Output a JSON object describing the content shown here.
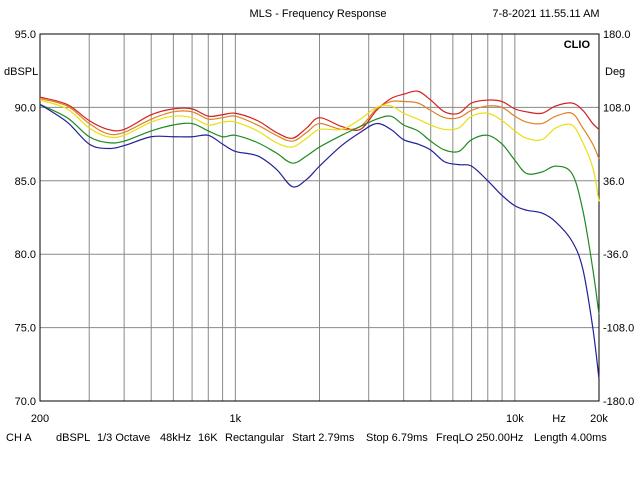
{
  "header": {
    "title": "MLS - Frequency Response",
    "timestamp": "7-8-2021 11.55.11 AM",
    "brand": "CLIO"
  },
  "footer": {
    "channel": "CH A",
    "unit": "dBSPL",
    "smoothing": "1/3 Octave",
    "sample_rate": "48kHz",
    "fft_size": "16K",
    "window": "Rectangular",
    "start": "Start 2.79ms",
    "stop": "Stop 6.79ms",
    "freq_lo": "FreqLO 250.00Hz",
    "length": "Length 4.00ms"
  },
  "chart_data": {
    "type": "line",
    "title": "MLS - Frequency Response",
    "xscale": "log",
    "xlim": [
      200,
      20000
    ],
    "ylim": [
      70,
      95
    ],
    "y2lim": [
      -180,
      180
    ],
    "grid": true,
    "legend": "none",
    "ylabel": "dBSPL",
    "y2label": "Deg",
    "xlabel_unit": "Hz",
    "x_tick_labels": [
      {
        "value": 200,
        "label": "200"
      },
      {
        "value": 1000,
        "label": "1k"
      },
      {
        "value": 10000,
        "label": "10k"
      },
      {
        "value": 20000,
        "label": "20k"
      }
    ],
    "y_ticks": [
      "95.0",
      "90.0",
      "85.0",
      "80.0",
      "75.0",
      "70.0"
    ],
    "y2_ticks": [
      "180.0",
      "108.0",
      "36.0",
      "-36.0",
      "-108.0",
      "-180.0"
    ],
    "x": [
      200,
      250,
      300,
      350,
      400,
      500,
      600,
      700,
      800,
      900,
      1000,
      1200,
      1400,
      1600,
      1800,
      2000,
      2400,
      2800,
      3200,
      3600,
      4000,
      4500,
      5000,
      5600,
      6300,
      7000,
      8000,
      9000,
      10000,
      11000,
      12500,
      14000,
      16000,
      17500,
      19000,
      20000
    ],
    "series": [
      {
        "color": "#d42020",
        "values": [
          90.7,
          90.2,
          89.1,
          88.5,
          88.5,
          89.5,
          89.9,
          89.9,
          89.4,
          89.5,
          89.6,
          89.1,
          88.3,
          87.9,
          88.6,
          89.3,
          88.7,
          88.5,
          89.8,
          90.6,
          90.9,
          91.1,
          90.5,
          89.7,
          89.6,
          90.3,
          90.5,
          90.4,
          89.9,
          89.7,
          89.6,
          90.1,
          90.3,
          89.8,
          88.9,
          88.5
        ]
      },
      {
        "color": "#e08020",
        "values": [
          90.6,
          90.1,
          88.9,
          88.2,
          88.3,
          89.2,
          89.7,
          89.7,
          89.2,
          89.3,
          89.4,
          88.8,
          88.1,
          87.7,
          88.3,
          88.9,
          88.5,
          88.7,
          89.9,
          90.4,
          90.4,
          90.3,
          89.8,
          89.3,
          89.3,
          89.8,
          90.1,
          90.0,
          89.4,
          89.0,
          88.9,
          89.4,
          89.6,
          88.6,
          87.5,
          86.5
        ]
      },
      {
        "color": "#e8e010",
        "values": [
          90.5,
          89.9,
          88.6,
          88.0,
          88.1,
          89.0,
          89.4,
          89.3,
          88.8,
          89.0,
          89.0,
          88.4,
          87.6,
          87.3,
          87.9,
          88.5,
          88.5,
          89.2,
          90.0,
          90.1,
          89.6,
          89.2,
          88.8,
          88.5,
          88.6,
          89.4,
          89.6,
          89.1,
          88.4,
          87.9,
          87.8,
          88.6,
          88.8,
          87.6,
          85.9,
          83.6
        ]
      },
      {
        "color": "#1f8a1f",
        "values": [
          90.2,
          89.3,
          88.0,
          87.6,
          87.7,
          88.4,
          88.8,
          88.9,
          88.4,
          88.0,
          88.1,
          87.6,
          86.9,
          86.2,
          86.7,
          87.3,
          88.1,
          88.7,
          89.2,
          89.4,
          88.8,
          88.4,
          87.7,
          87.1,
          87.0,
          87.8,
          88.1,
          87.5,
          86.4,
          85.5,
          85.6,
          86.0,
          85.5,
          83.0,
          79.0,
          75.9
        ]
      },
      {
        "color": "#20209a",
        "values": [
          90.2,
          89.0,
          87.5,
          87.2,
          87.4,
          88.0,
          88.0,
          88.0,
          88.1,
          87.5,
          87.0,
          86.7,
          85.8,
          84.6,
          85.1,
          86.0,
          87.4,
          88.3,
          88.9,
          88.5,
          87.8,
          87.5,
          87.1,
          86.3,
          86.1,
          86.0,
          85.0,
          84.0,
          83.3,
          83.0,
          82.8,
          82.2,
          80.9,
          79.0,
          75.0,
          71.5
        ]
      }
    ]
  }
}
